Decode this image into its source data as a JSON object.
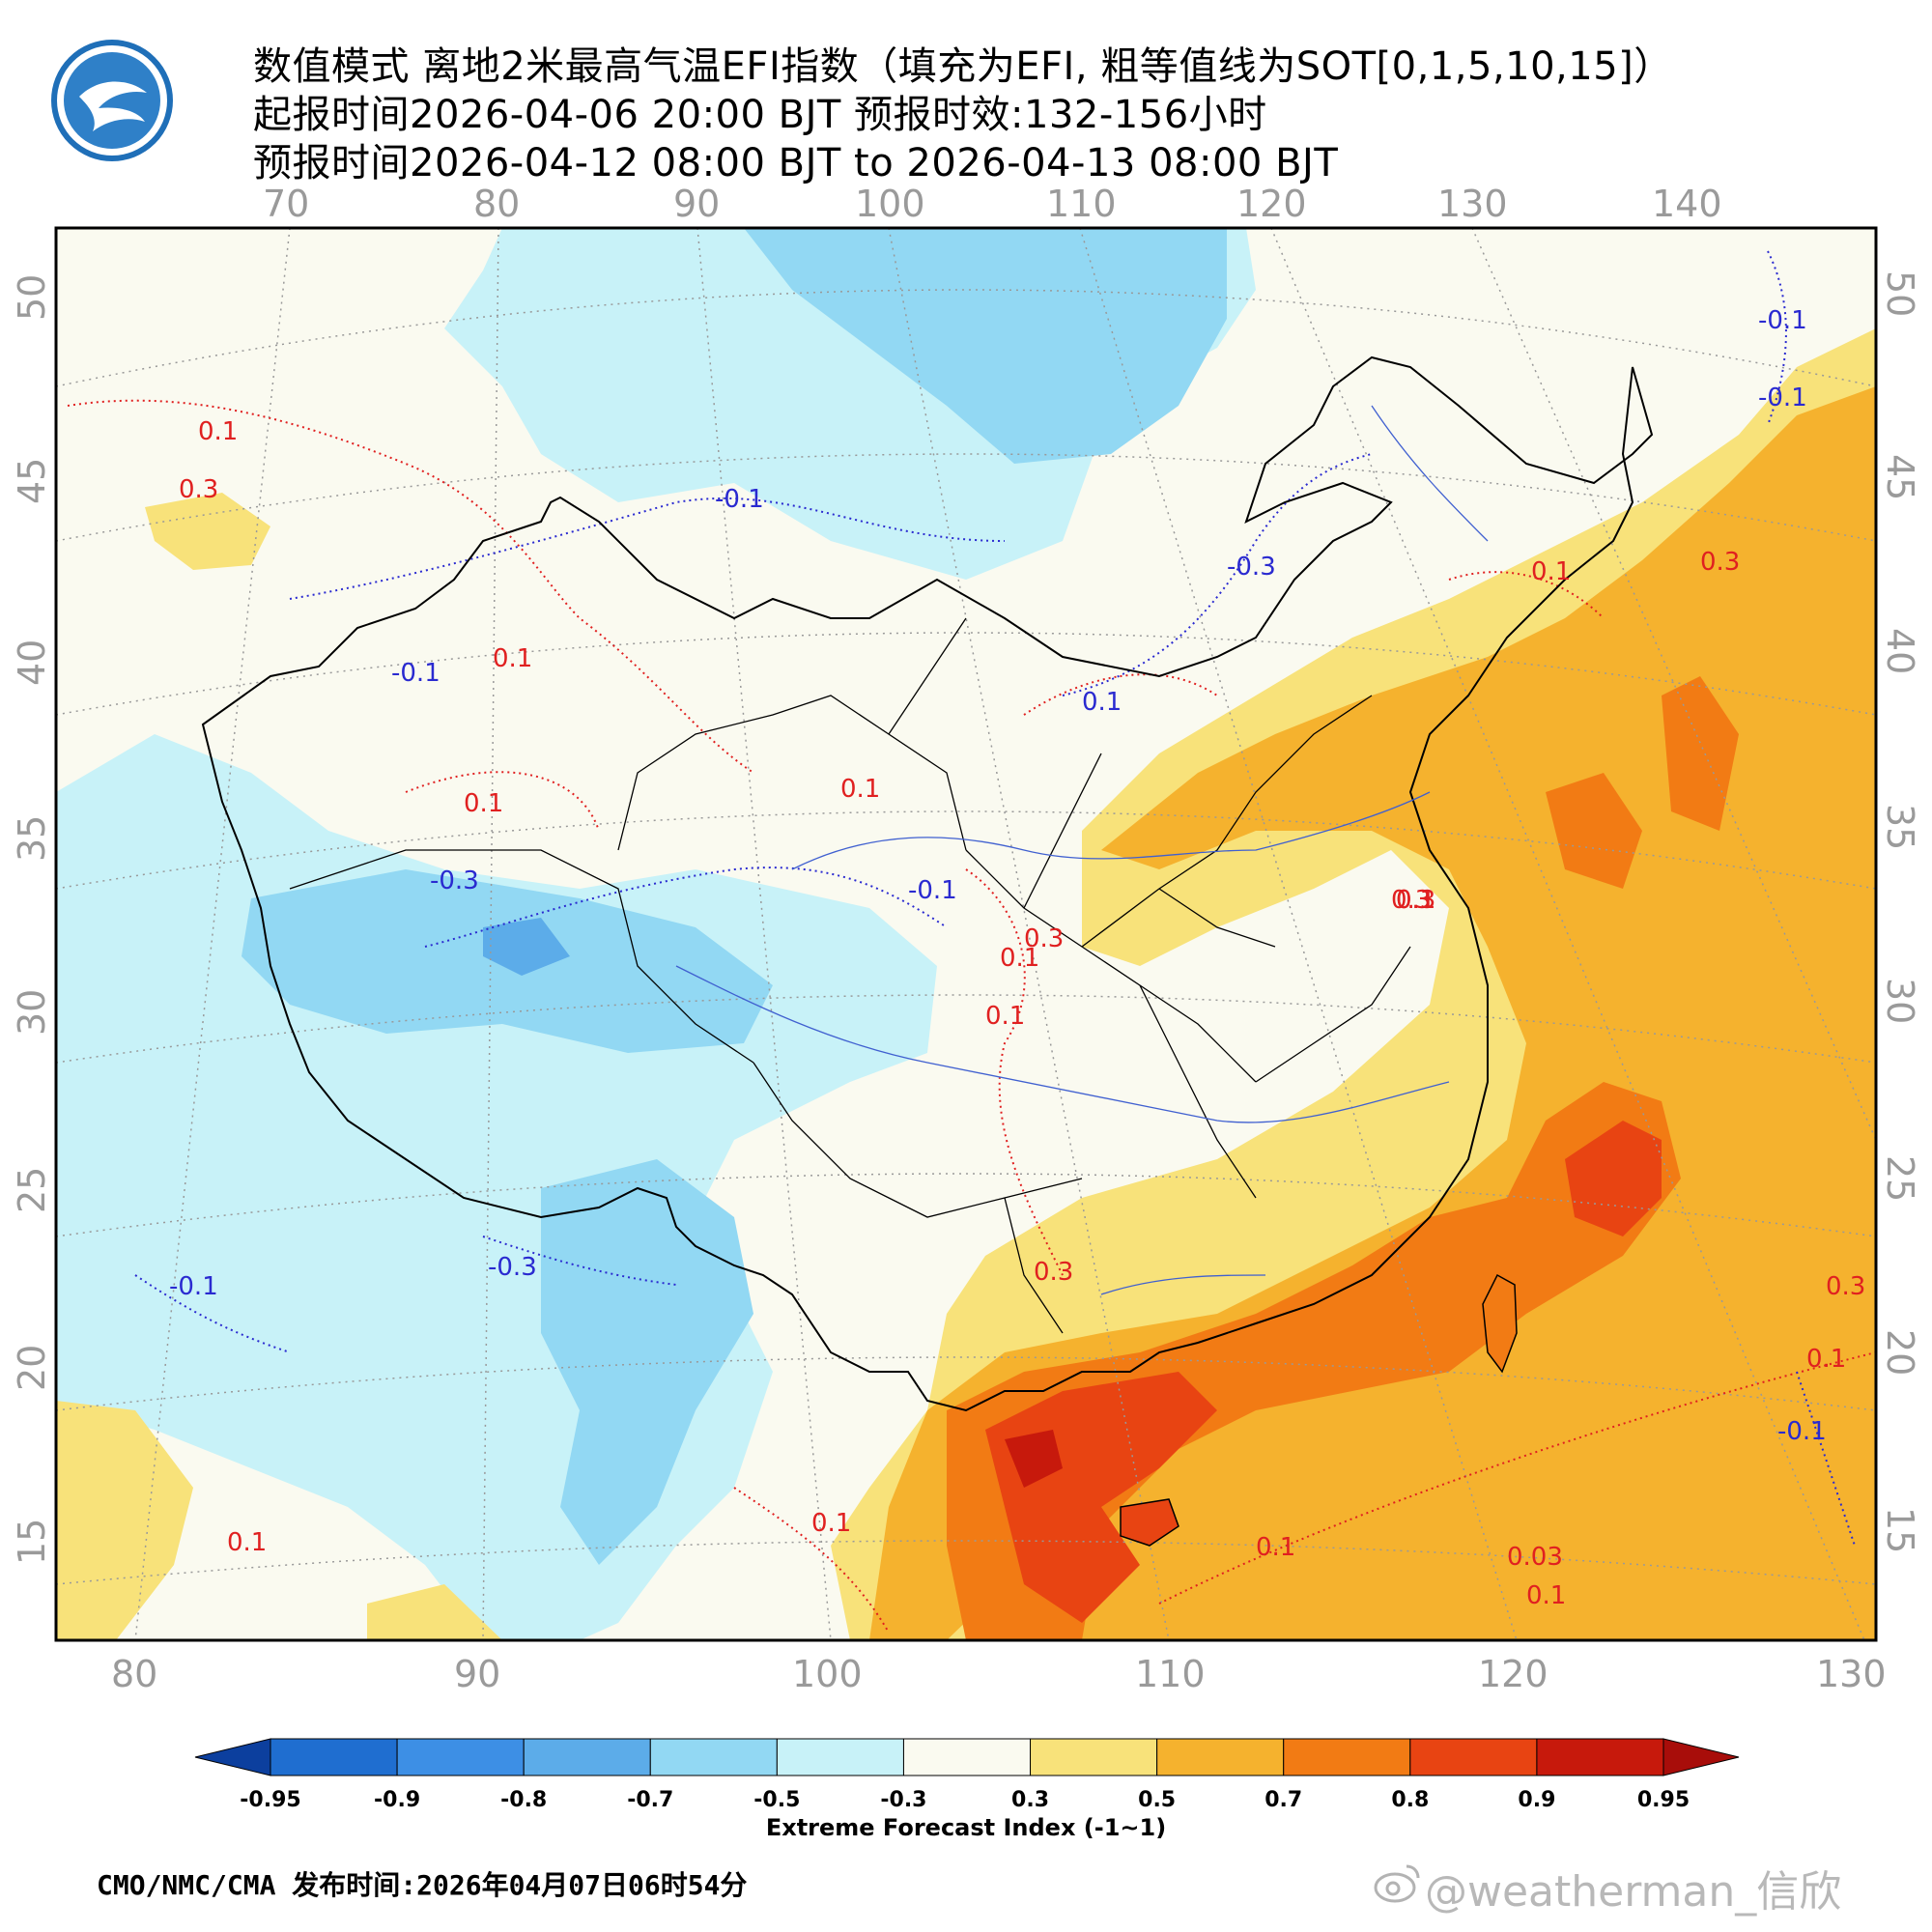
{
  "header": {
    "line1": "数值模式 离地2米最高气温EFI指数（填充为EFI, 粗等值线为SOT[0,1,5,10,15]）",
    "line2": "起报时间2026-04-06 20:00 BJT 预报时效:132-156小时",
    "line3": "预报时间2026-04-12 08:00 BJT to 2026-04-13 08:00 BJT"
  },
  "map": {
    "top_lon_labels": [
      "70",
      "80",
      "90",
      "100",
      "110",
      "120",
      "130",
      "140"
    ],
    "bottom_lon_labels": [
      "80",
      "90",
      "100",
      "110",
      "120",
      "130"
    ],
    "left_lat_labels": [
      "50",
      "45",
      "40",
      "35",
      "30",
      "25",
      "20",
      "15"
    ],
    "right_lat_labels": [
      "50",
      "45",
      "40",
      "35",
      "30",
      "25",
      "20",
      "15"
    ],
    "contour_labels": [
      "0.1",
      "0.3",
      "0.1",
      "0.1",
      "-0.1",
      "-0.1",
      "0.1",
      "0.1",
      "-0.3",
      "0.1",
      "-0.3",
      "0.3",
      "-0.1",
      "0.1",
      "-0.3",
      "0.3",
      "-0.1",
      "0.1",
      "-0.1",
      "0.3",
      "0.1",
      "0.1",
      "0.3",
      "0.1",
      "0.3",
      "0.1",
      "-0.1",
      "0.1",
      "0.3",
      "-0.1",
      "0.03",
      "0.1"
    ]
  },
  "legend": {
    "title": "Extreme Forecast Index (-1~1)",
    "tick_labels": [
      "-0.95",
      "-0.9",
      "-0.8",
      "-0.7",
      "-0.5",
      "-0.3",
      "0.3",
      "0.5",
      "0.7",
      "0.8",
      "0.9",
      "0.95"
    ],
    "colors": [
      "#0c3f9e",
      "#1f6ed0",
      "#3d8fe5",
      "#5cace9",
      "#92d8f3",
      "#c8f2f8",
      "#fafaf0",
      "#f8e27a",
      "#f5b22e",
      "#f27b14",
      "#e84412",
      "#c7190c",
      "#a80d0a"
    ]
  },
  "footer": {
    "source": "CMO/NMC/CMA 发布时间:2026年04月07日06时54分",
    "watermark": "@weatherman_信欣"
  }
}
